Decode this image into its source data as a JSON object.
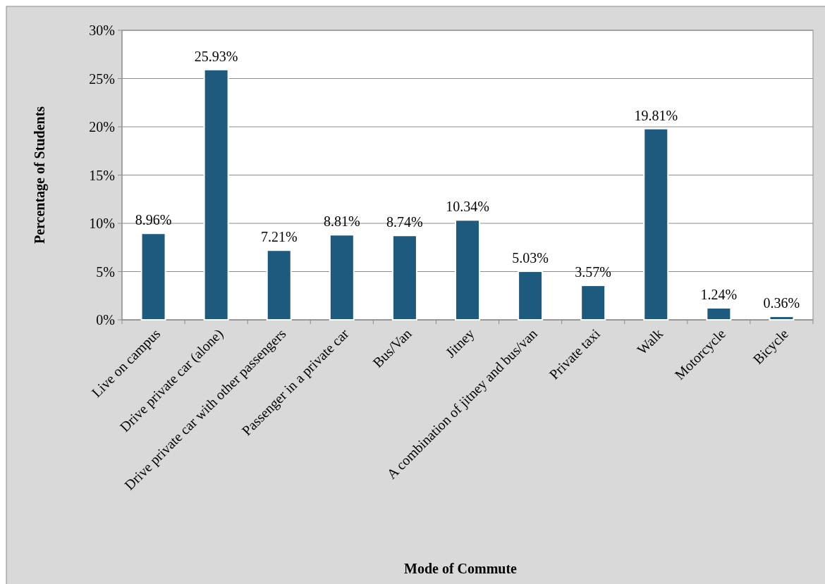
{
  "chart_data": {
    "type": "bar",
    "xlabel": "Mode of Commute",
    "ylabel": "Percentage of Students",
    "categories": [
      "Live on campus",
      "Drive private car (alone)",
      "Drive private car with other passengers",
      "Passenger in a private car",
      "Bus/Van",
      "Jitney",
      "A combination of jitney and bus/van",
      "Private taxi",
      "Walk",
      "Motorcycle",
      "Bicycle"
    ],
    "values": [
      8.96,
      25.93,
      7.21,
      8.81,
      8.74,
      10.34,
      5.03,
      3.57,
      19.81,
      1.24,
      0.36
    ],
    "value_labels": [
      "8.96%",
      "25.93%",
      "7.21%",
      "8.81%",
      "8.74%",
      "10.34%",
      "5.03%",
      "3.57%",
      "19.81%",
      "1.24%",
      "0.36%"
    ],
    "color": "#1d5a7e",
    "ylim": [
      0,
      30
    ],
    "yticks": [
      {
        "value": 0,
        "label": "0%"
      },
      {
        "value": 5,
        "label": "5%"
      },
      {
        "value": 10,
        "label": "10%"
      },
      {
        "value": 15,
        "label": "15%"
      },
      {
        "value": 20,
        "label": "20%"
      },
      {
        "value": 25,
        "label": "25%"
      },
      {
        "value": 30,
        "label": "30%"
      }
    ],
    "grid": "y"
  }
}
